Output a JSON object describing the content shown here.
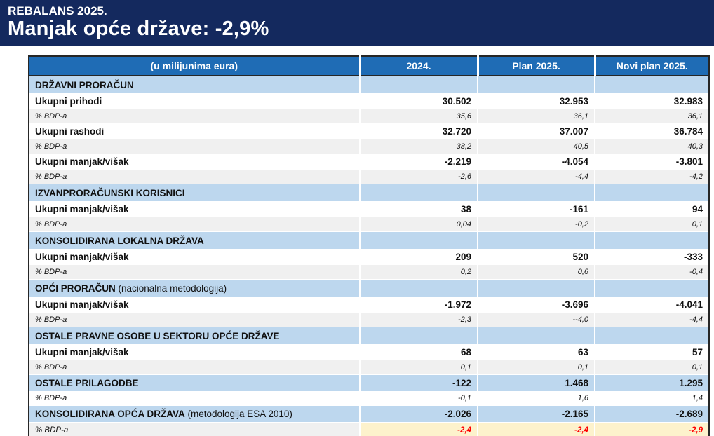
{
  "banner": {
    "kicker": "REBALANS 2025.",
    "title": "Manjak opće države: -2,9%"
  },
  "table": {
    "columns": [
      "(u milijunima eura)",
      "2024.",
      "Plan 2025.",
      "Novi plan 2025."
    ],
    "rows": [
      {
        "type": "section",
        "label": "DRŽAVNI PRORAČUN",
        "note": "",
        "values": [
          "",
          "",
          ""
        ]
      },
      {
        "type": "data",
        "label": "Ukupni prihodi",
        "note": "",
        "values": [
          "30.502",
          "32.953",
          "32.983"
        ]
      },
      {
        "type": "pct",
        "label": "% BDP-a",
        "note": "",
        "values": [
          "35,6",
          "36,1",
          "36,1"
        ]
      },
      {
        "type": "data",
        "label": "Ukupni rashodi",
        "note": "",
        "values": [
          "32.720",
          "37.007",
          "36.784"
        ]
      },
      {
        "type": "pct",
        "label": "% BDP-a",
        "note": "",
        "values": [
          "38,2",
          "40,5",
          "40,3"
        ]
      },
      {
        "type": "data",
        "label": "Ukupni manjak/višak",
        "note": "",
        "values": [
          "-2.219",
          "-4.054",
          "-3.801"
        ]
      },
      {
        "type": "pct",
        "label": "% BDP-a",
        "note": "",
        "values": [
          "-2,6",
          "-4,4",
          "-4,2"
        ]
      },
      {
        "type": "section",
        "label": "IZVANPRORAČUNSKI KORISNICI",
        "note": "",
        "values": [
          "",
          "",
          ""
        ]
      },
      {
        "type": "data",
        "label": "Ukupni manjak/višak",
        "note": "",
        "values": [
          "38",
          "-161",
          "94"
        ]
      },
      {
        "type": "pct",
        "label": "% BDP-a",
        "note": "",
        "values": [
          "0,04",
          "-0,2",
          "0,1"
        ]
      },
      {
        "type": "section",
        "label": "KONSOLIDIRANA LOKALNA DRŽAVA",
        "note": "",
        "values": [
          "",
          "",
          ""
        ]
      },
      {
        "type": "data",
        "label": "Ukupni manjak/višak",
        "note": "",
        "values": [
          "209",
          "520",
          "-333"
        ]
      },
      {
        "type": "pct",
        "label": "% BDP-a",
        "note": "",
        "values": [
          "0,2",
          "0,6",
          "-0,4"
        ]
      },
      {
        "type": "section",
        "label": "OPĆI PRORAČUN",
        "note": "(nacionalna metodologija)",
        "values": [
          "",
          "",
          ""
        ]
      },
      {
        "type": "data",
        "label": "Ukupni manjak/višak",
        "note": "",
        "values": [
          "-1.972",
          "-3.696",
          "-4.041"
        ]
      },
      {
        "type": "pct",
        "label": "% BDP-a",
        "note": "",
        "values": [
          "-2,3",
          "--4,0",
          "-4,4"
        ]
      },
      {
        "type": "section",
        "label": "OSTALE PRAVNE OSOBE U SEKTORU OPĆE DRŽAVE",
        "note": "",
        "values": [
          "",
          "",
          ""
        ]
      },
      {
        "type": "data",
        "label": "Ukupni manjak/višak",
        "note": "",
        "values": [
          "68",
          "63",
          "57"
        ]
      },
      {
        "type": "pct",
        "label": "% BDP-a",
        "note": "",
        "values": [
          "0,1",
          "0,1",
          "0,1"
        ]
      },
      {
        "type": "section-data",
        "label": "OSTALE PRILAGODBE",
        "note": "",
        "values": [
          "-122",
          "1.468",
          "1.295"
        ]
      },
      {
        "type": "pct-plain",
        "label": "% BDP-a",
        "note": "",
        "values": [
          "-0,1",
          "1,6",
          "1,4"
        ]
      },
      {
        "type": "section-data",
        "label": "KONSOLIDIRANA OPĆA DRŽAVA",
        "note": "(metodologija ESA 2010)",
        "values": [
          "-2.026",
          "-2.165",
          "-2.689"
        ]
      },
      {
        "type": "pct-highlight",
        "label": "% BDP-a",
        "note": "",
        "values": [
          "-2,4",
          "-2,4",
          "-2,9"
        ]
      }
    ]
  },
  "colors": {
    "banner_navy": "#14295e",
    "header_blue": "#1f6cb5",
    "section_light_blue": "#bdd7ee",
    "stripe_gray": "#f0f0f0",
    "highlight_yellow": "#fdf2cc",
    "negative_red": "#ff0000"
  }
}
